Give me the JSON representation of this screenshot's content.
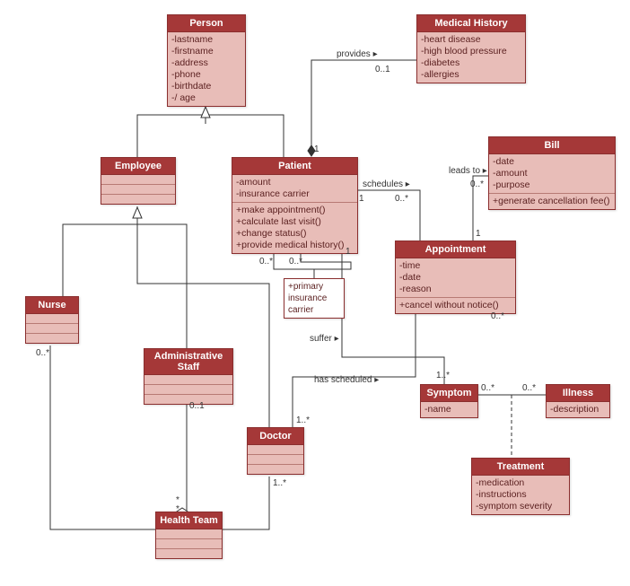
{
  "colors": {
    "header": "#a53838",
    "body": "#e8bdb8",
    "border": "#8a2e2e",
    "line": "#333333"
  },
  "classes": {
    "person": {
      "title": "Person",
      "attrs": [
        "-lastname",
        "-firstname",
        "-address",
        "-phone",
        "-birthdate",
        "-/ age"
      ],
      "ops": []
    },
    "medhist": {
      "title": "Medical History",
      "attrs": [
        "-heart disease",
        "-high blood pressure",
        "-diabetes",
        "-allergies"
      ],
      "ops": []
    },
    "employee": {
      "title": "Employee",
      "attrs": [],
      "ops": []
    },
    "patient": {
      "title": "Patient",
      "attrs": [
        "-amount",
        "-insurance carrier"
      ],
      "ops": [
        "+make appointment()",
        "+calculate last visit()",
        "+change status()",
        "+provide medical history()"
      ]
    },
    "bill": {
      "title": "Bill",
      "attrs": [
        "-date",
        "-amount",
        "-purpose"
      ],
      "ops": [
        "+generate cancellation fee()"
      ]
    },
    "appointment": {
      "title": "Appointment",
      "attrs": [
        "-time",
        "-date",
        "-reason"
      ],
      "ops": [
        "+cancel without notice()"
      ]
    },
    "nurse": {
      "title": "Nurse",
      "attrs": [],
      "ops": []
    },
    "admin": {
      "title": "Administrative Staff",
      "attrs": [],
      "ops": []
    },
    "doctor": {
      "title": "Doctor",
      "attrs": [],
      "ops": []
    },
    "symptom": {
      "title": "Symptom",
      "attrs": [
        "-name"
      ],
      "ops": []
    },
    "illness": {
      "title": "Illness",
      "attrs": [
        "-description"
      ],
      "ops": []
    },
    "treatment": {
      "title": "Treatment",
      "attrs": [
        "-medication",
        "-instructions",
        "-symptom severity"
      ],
      "ops": []
    },
    "healthteam": {
      "title": "Health Team",
      "attrs": [],
      "ops": []
    },
    "primaryins": {
      "title": "",
      "attrs": [
        "+primary insurance carrier"
      ],
      "ops": []
    }
  },
  "labels": {
    "provides": "provides ▸",
    "schedules": "schedules ▸",
    "leadsto": "leads to ▸",
    "suffer": "suffer ▸",
    "hassched": "has scheduled ▸",
    "m_0_1_a": "0..1",
    "m_1_a": "1",
    "m_0s_a": "0..*",
    "m_0s_b": "0..*",
    "m_1_b": "1",
    "m_0s_c": "0..*",
    "m_1_c": "1",
    "m_0s_d": "0..*",
    "m_1s_a": "1..*",
    "m_0s_e": "0..*",
    "m_0s_f": "0..*",
    "m_0s_g": "0..*",
    "m_0_1_b": "0..1",
    "m_1s_b": "1..*",
    "m_1s_c": "1..*",
    "m_0s_h": "0..*",
    "m_1_d": "1",
    "m_star1": "*",
    "m_star2": "*"
  }
}
